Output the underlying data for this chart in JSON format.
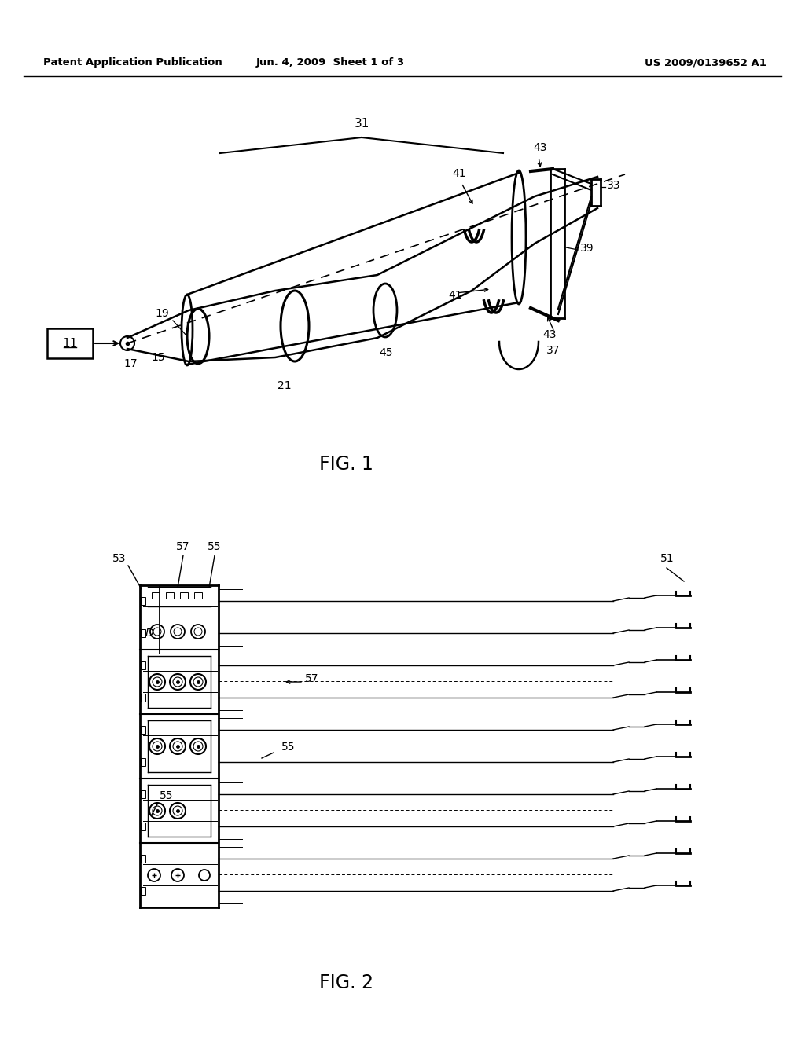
{
  "bg_color": "#ffffff",
  "line_color": "#000000",
  "header_left": "Patent Application Publication",
  "header_center": "Jun. 4, 2009  Sheet 1 of 3",
  "header_right": "US 2009/0139652 A1",
  "fig1_caption": "FIG. 1",
  "fig2_caption": "FIG. 2"
}
